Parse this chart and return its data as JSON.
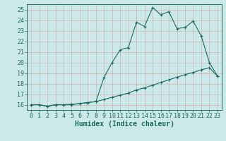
{
  "xlabel": "Humidex (Indice chaleur)",
  "bg_color": "#cce9e9",
  "grid_color": "#d4b8b8",
  "line_color": "#1a6b5a",
  "marker_color": "#1a6b5a",
  "xlim": [
    -0.5,
    23.5
  ],
  "ylim": [
    15.5,
    25.5
  ],
  "yticks": [
    16,
    17,
    18,
    19,
    20,
    21,
    22,
    23,
    24,
    25
  ],
  "xticks": [
    0,
    1,
    2,
    3,
    4,
    5,
    6,
    7,
    8,
    9,
    10,
    11,
    12,
    13,
    14,
    15,
    16,
    17,
    18,
    19,
    20,
    21,
    22,
    23
  ],
  "series1_x": [
    0,
    1,
    2,
    3,
    4,
    5,
    6,
    7,
    8,
    9,
    10,
    11,
    12,
    13,
    14,
    15,
    16,
    17,
    18,
    19,
    20,
    21,
    22,
    23
  ],
  "series1_y": [
    16.0,
    16.0,
    15.85,
    16.0,
    16.0,
    16.0,
    16.1,
    16.2,
    16.3,
    18.6,
    20.0,
    21.2,
    21.4,
    23.8,
    23.4,
    25.2,
    24.5,
    24.8,
    23.2,
    23.3,
    23.9,
    22.5,
    20.0,
    18.7
  ],
  "series2_x": [
    0,
    1,
    2,
    3,
    4,
    5,
    6,
    7,
    8,
    9,
    10,
    11,
    12,
    13,
    14,
    15,
    16,
    17,
    18,
    19,
    20,
    21,
    22,
    23
  ],
  "series2_y": [
    16.0,
    16.0,
    15.85,
    16.0,
    16.0,
    16.05,
    16.1,
    16.2,
    16.3,
    16.5,
    16.7,
    16.9,
    17.1,
    17.4,
    17.6,
    17.85,
    18.1,
    18.35,
    18.6,
    18.85,
    19.05,
    19.3,
    19.5,
    18.7
  ],
  "font_size_tick": 6,
  "font_size_label": 7
}
